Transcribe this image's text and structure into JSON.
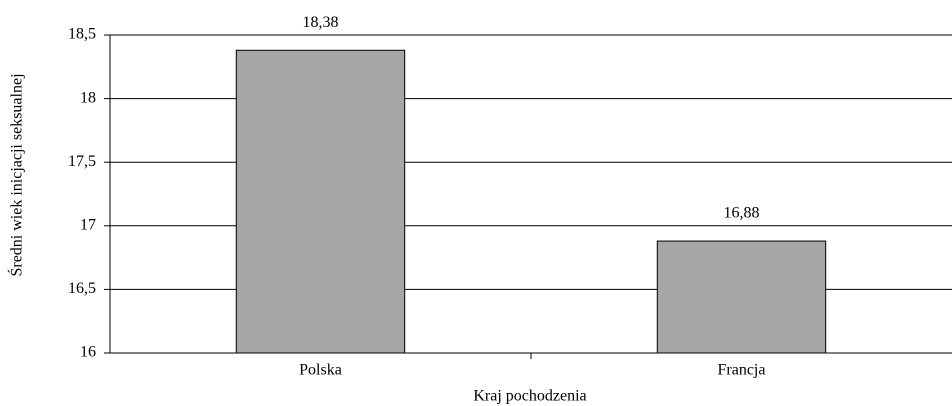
{
  "chart_data": {
    "type": "bar",
    "x_label": "Kraj pochodzenia",
    "y_label": "Średni wiek inicjacji seksualnej",
    "categories": [
      "Polska",
      "Francja"
    ],
    "values": [
      18.38,
      16.88
    ],
    "value_labels": [
      "18,38",
      "16,88"
    ],
    "color": "#a6a6a6",
    "ylim": [
      16,
      18.5
    ],
    "yticks": [
      16,
      {
        "value": 16.5,
        "label": "16,5"
      },
      17,
      {
        "value": 17.5,
        "label": "17,5"
      },
      18,
      {
        "value": 18.5,
        "label": "18,5"
      }
    ],
    "grid": true
  }
}
